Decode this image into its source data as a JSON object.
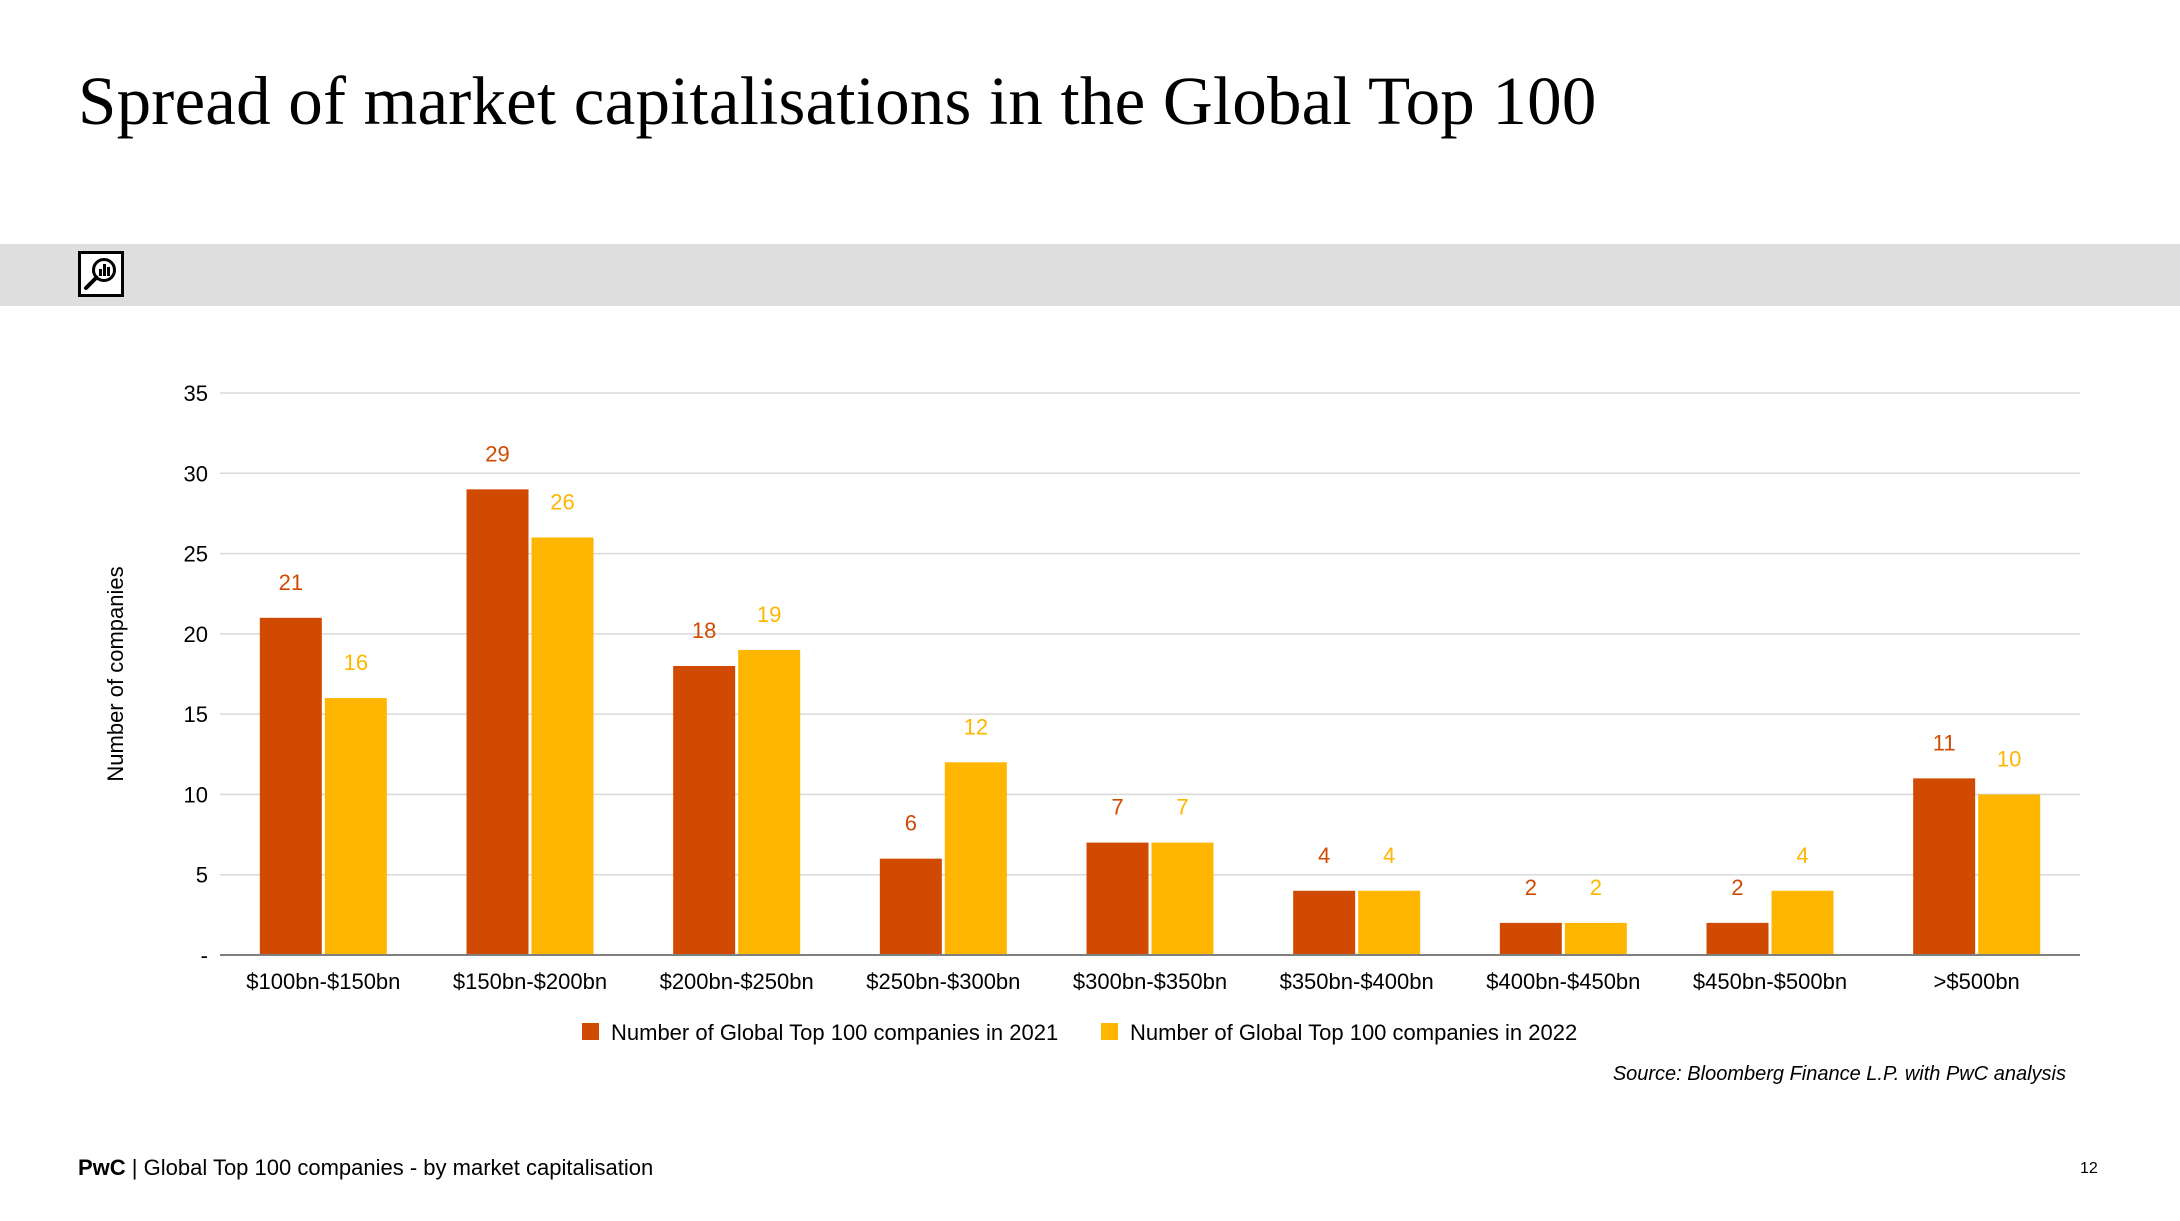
{
  "slide": {
    "title": "Spread of market capitalisations in the Global Top 100",
    "source": "Source: Bloomberg Finance L.P. with PwC analysis",
    "footer_brand": "PwC",
    "footer_separator": " | ",
    "footer_text": "Global Top 100 companies - by market capitalisation",
    "page_number": "12",
    "band_icon": "magnifier-bar-chart-icon"
  },
  "chart_data": {
    "type": "bar",
    "title": "",
    "xlabel": "",
    "ylabel": "Number of companies",
    "ylim": [
      0,
      35
    ],
    "yticks": [
      "-",
      "5",
      "10",
      "15",
      "20",
      "25",
      "30",
      "35"
    ],
    "grid": true,
    "legend_position": "bottom",
    "categories": [
      "$100bn-$150bn",
      "$150bn-$200bn",
      "$200bn-$250bn",
      "$250bn-$300bn",
      "$300bn-$350bn",
      "$350bn-$400bn",
      "$400bn-$450bn",
      "$450bn-$500bn",
      ">$500bn"
    ],
    "series": [
      {
        "name": "Number of Global Top 100 companies in 2021",
        "color": "#d04a02",
        "values": [
          21,
          29,
          18,
          6,
          7,
          4,
          2,
          2,
          11
        ]
      },
      {
        "name": "Number of Global Top 100 companies in 2022",
        "color": "#ffb600",
        "values": [
          16,
          26,
          19,
          12,
          7,
          4,
          2,
          4,
          10
        ]
      }
    ],
    "data_labels": true
  }
}
